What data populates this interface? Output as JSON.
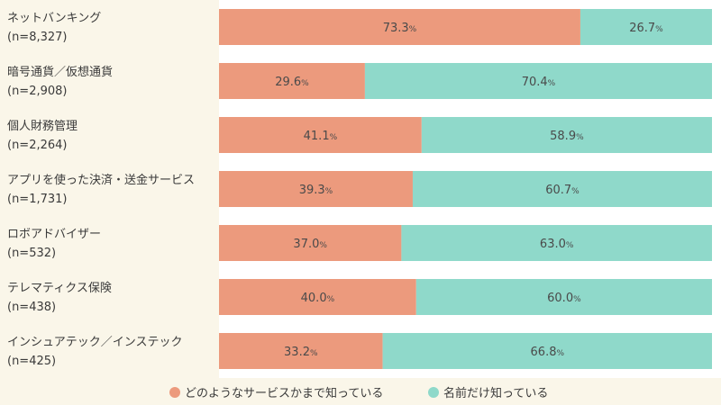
{
  "chart_data": {
    "type": "bar",
    "stacked": true,
    "orientation": "horizontal",
    "categories": [
      "ネットバンキング",
      "暗号通貨／仮想通貨",
      "個人財務管理",
      "アプリを使った決済・送金サービス",
      "ロボアドバイザー",
      "テレマティクス保険",
      "インシュアテック／インステック"
    ],
    "sample_sizes": [
      "(n=8,327)",
      "(n=2,908)",
      "(n=2,264)",
      "(n=1,731)",
      "(n=532)",
      "(n=438)",
      "(n=425)"
    ],
    "series": [
      {
        "name": "どのようなサービスかまで知っている",
        "color": "#ec9a7d",
        "values": [
          73.3,
          29.6,
          41.1,
          39.3,
          37.0,
          40.0,
          33.2
        ]
      },
      {
        "name": "名前だけ知っている",
        "color": "#8fd9ca",
        "values": [
          26.7,
          70.4,
          58.9,
          60.7,
          63.0,
          60.0,
          66.8
        ]
      }
    ],
    "value_suffix": "%",
    "xlim": [
      0,
      100
    ],
    "legend_position": "bottom"
  }
}
